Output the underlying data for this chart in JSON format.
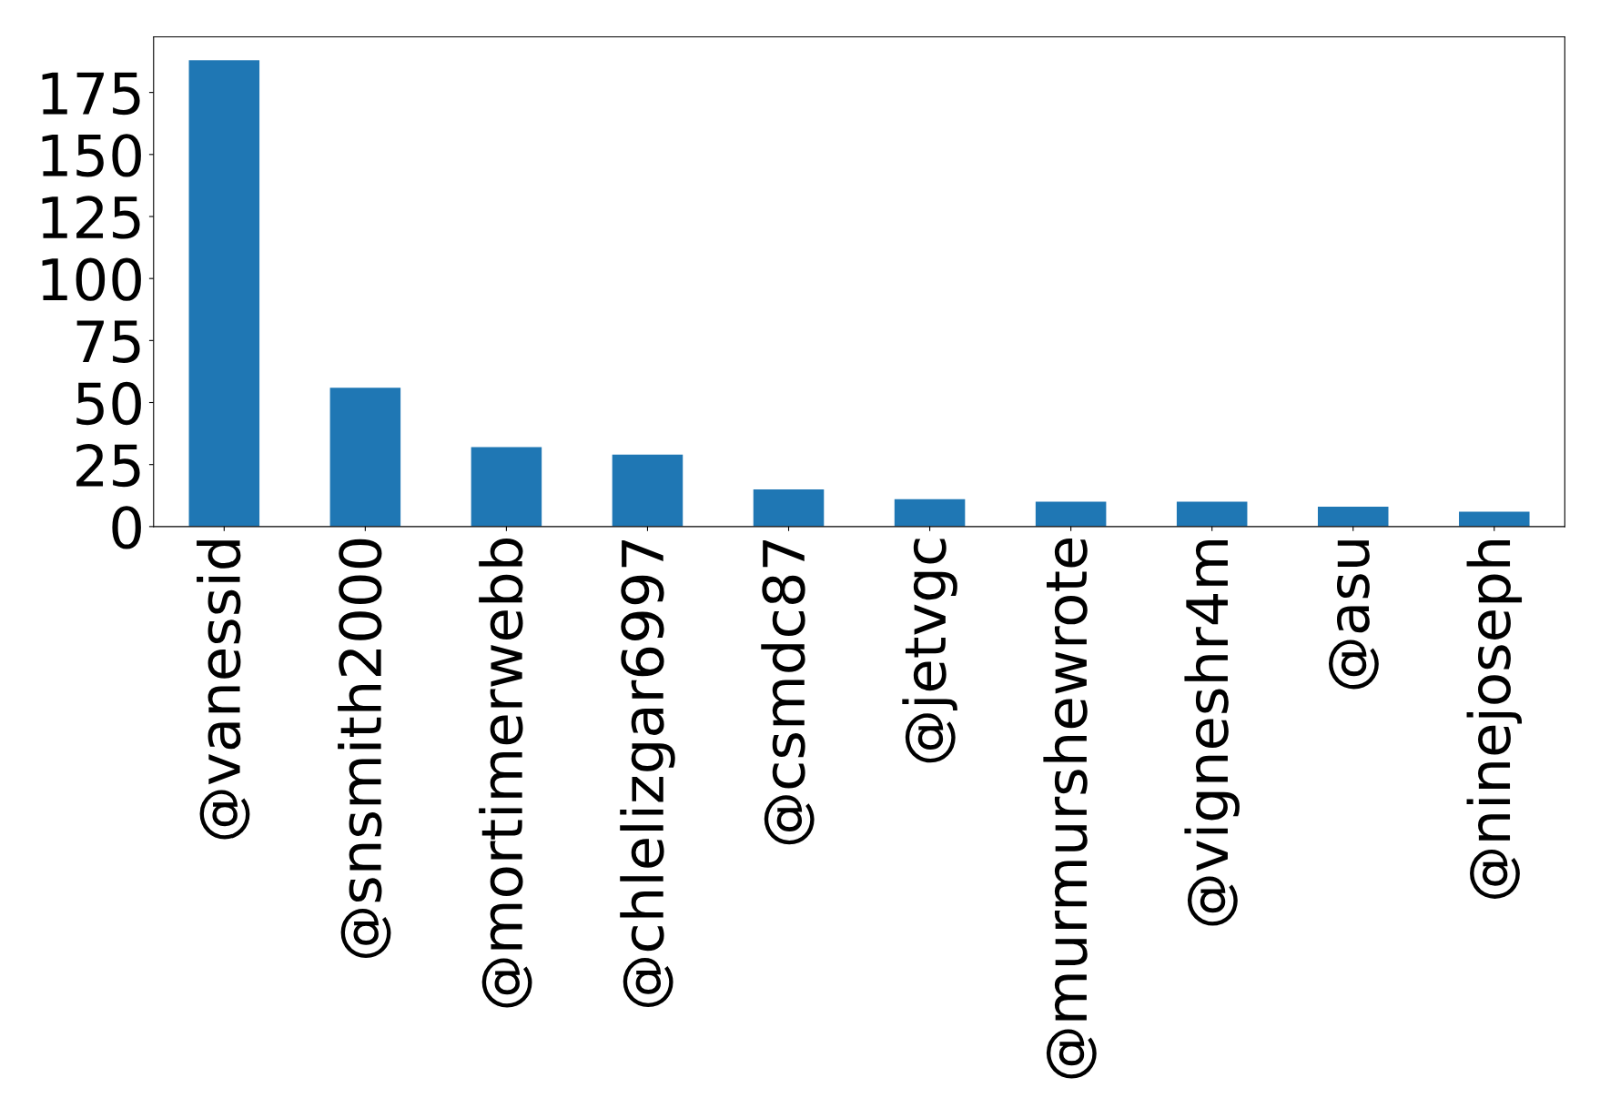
{
  "chart_data": {
    "type": "bar",
    "categories": [
      "@vanessid",
      "@snsmith2000",
      "@mortimerwebb",
      "@chlelizgar6997",
      "@csmdc87",
      "@jetvgc",
      "@murmurshewrote",
      "@vigneshr4m",
      "@asu",
      "@ninejoseph"
    ],
    "values": [
      188,
      56,
      32,
      29,
      15,
      11,
      10,
      10,
      8,
      6
    ],
    "color": "#1f77b4",
    "ylim": [
      0,
      197.4
    ],
    "yticks": [
      0,
      25,
      50,
      75,
      100,
      125,
      150,
      175
    ]
  }
}
